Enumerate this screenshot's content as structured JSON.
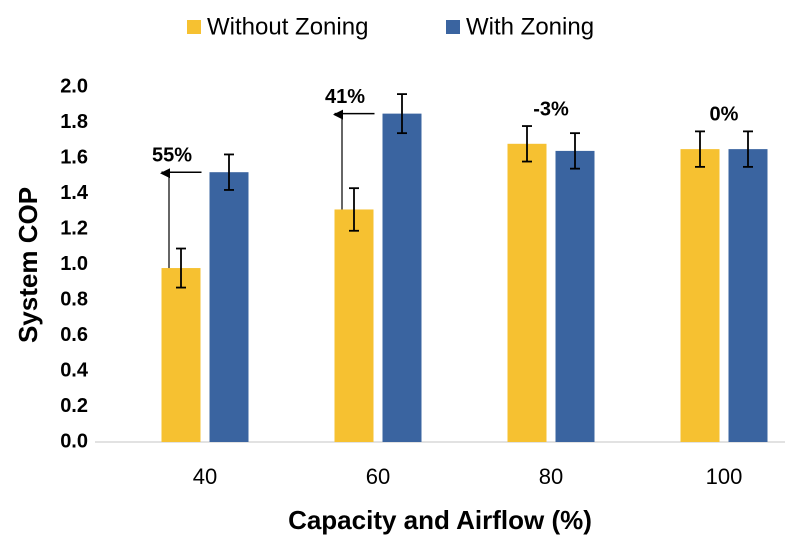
{
  "chart_data": {
    "type": "bar",
    "xlabel": "Capacity and Airflow (%)",
    "ylabel": "System COP",
    "categories": [
      "40",
      "60",
      "80",
      "100"
    ],
    "series": [
      {
        "name": "Without Zoning",
        "color": "#f6c131",
        "values": [
          0.98,
          1.31,
          1.68,
          1.65
        ],
        "errors": [
          0.11,
          0.12,
          0.1,
          0.1
        ]
      },
      {
        "name": "With Zoning",
        "color": "#3a64a0",
        "values": [
          1.52,
          1.85,
          1.64,
          1.65
        ],
        "errors": [
          0.1,
          0.11,
          0.1,
          0.1
        ]
      }
    ],
    "annotations": [
      "55%",
      "41%",
      "-3%",
      "0%"
    ],
    "arrows": [
      true,
      true,
      false,
      false
    ],
    "ylim": [
      0,
      2.0
    ],
    "yticks": [
      {
        "value": 0,
        "label": "0.0"
      },
      {
        "value": 0.2,
        "label": "0.2"
      },
      {
        "value": 0.4,
        "label": "0.4"
      },
      {
        "value": 0.6,
        "label": "0.6"
      },
      {
        "value": 0.8,
        "label": "0.8"
      },
      {
        "value": 1.0,
        "label": "1.0"
      },
      {
        "value": 1.2,
        "label": "1.2"
      },
      {
        "value": 1.4,
        "label": "1.4"
      },
      {
        "value": 1.6,
        "label": "1.6"
      },
      {
        "value": 1.8,
        "label": "1.8"
      },
      {
        "value": 2.0,
        "label": "2.0"
      }
    ],
    "legend": "top",
    "grid": false
  }
}
